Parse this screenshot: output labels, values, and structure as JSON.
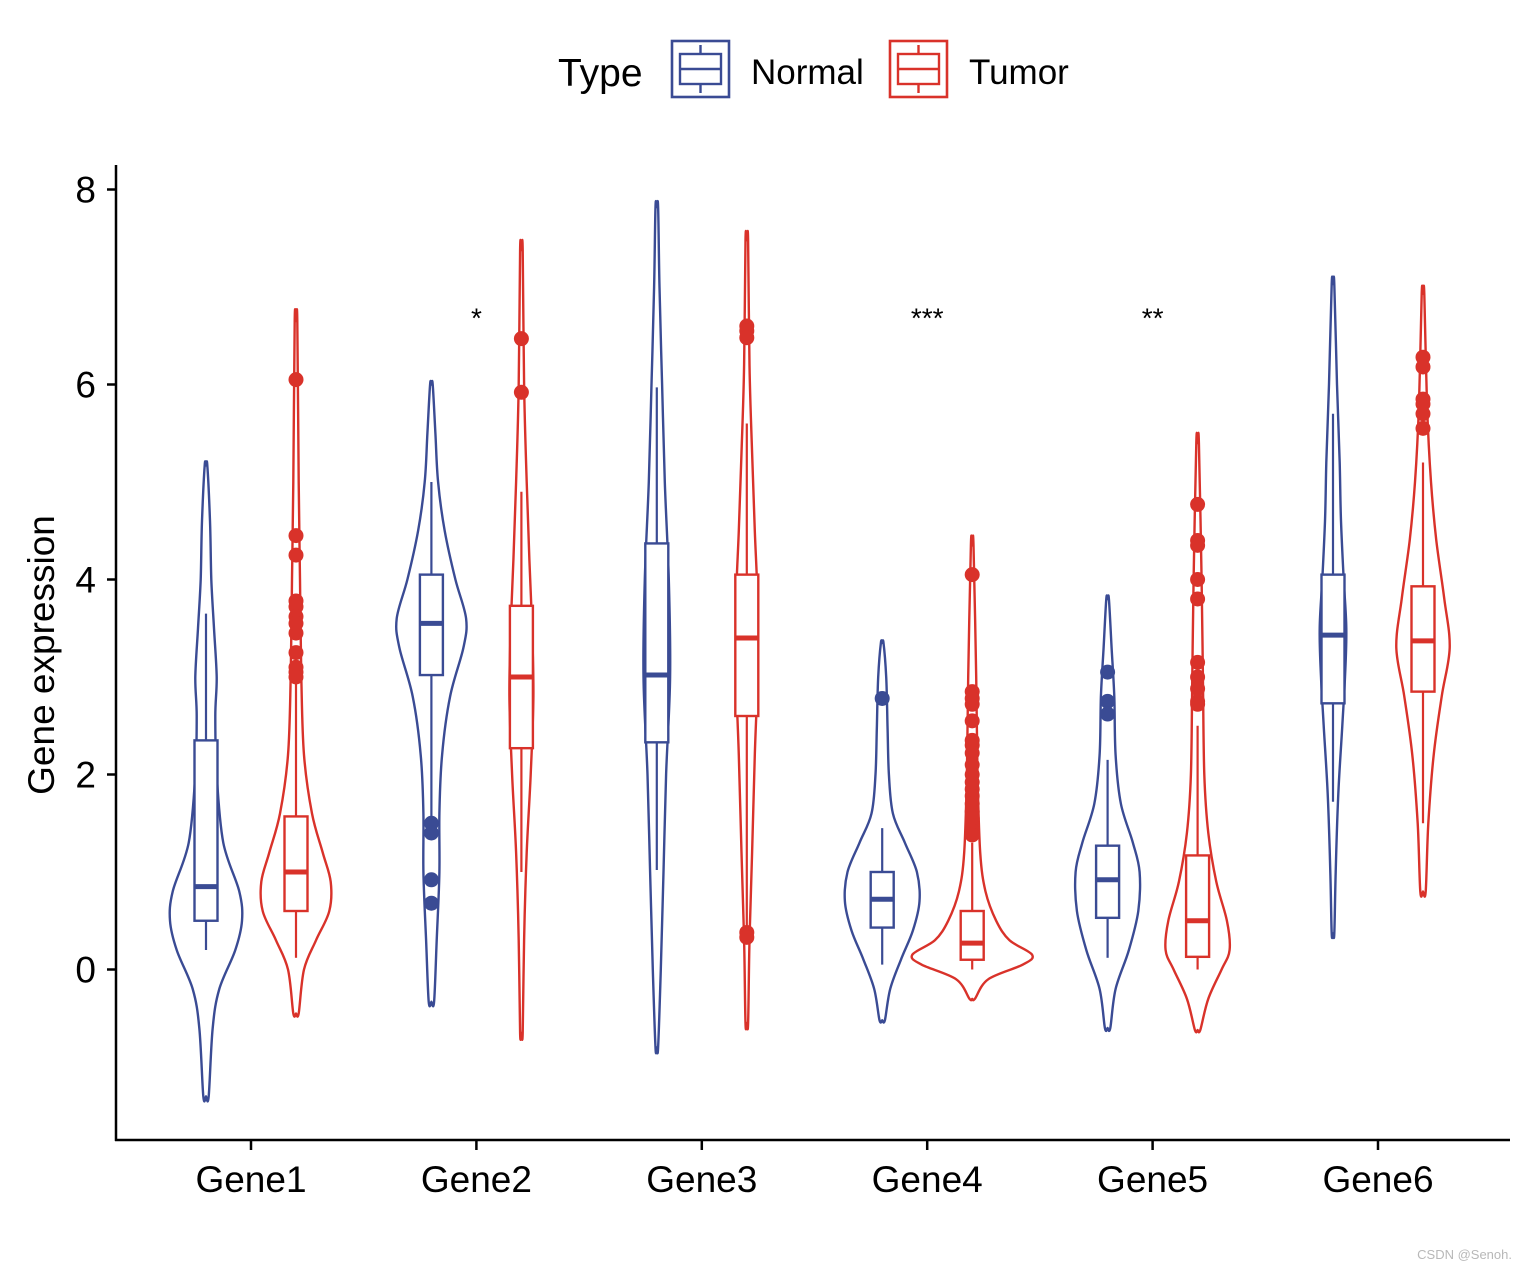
{
  "watermark": "CSDN @Senoh.",
  "chart_data": {
    "type": "violin",
    "title": "",
    "xlabel": "",
    "ylabel": "Gene expression",
    "ylim": [
      -1.75,
      8.3
    ],
    "yticks": [
      0,
      2,
      4,
      6,
      8
    ],
    "legend": {
      "title": "Type",
      "placement": "top-center",
      "entries": [
        {
          "name": "Normal",
          "color": "#3a4b94"
        },
        {
          "name": "Tumor",
          "color": "#d9322a"
        }
      ]
    },
    "categories": [
      "Gene1",
      "Gene2",
      "Gene3",
      "Gene4",
      "Gene5",
      "Gene6"
    ],
    "significance": [
      "",
      "*",
      "",
      "***",
      "**",
      ""
    ],
    "significance_y": 6.75,
    "series": [
      {
        "name": "Normal",
        "color": "#3a4b94",
        "groups": [
          {
            "violin_min": -1.3,
            "violin_max": 5.17,
            "whisker_low": 0.2,
            "q1": 0.5,
            "median": 0.85,
            "q3": 2.35,
            "whisker_high": 3.65,
            "outliers": [],
            "density": [
              [
                -1.3,
                0.02
              ],
              [
                -0.6,
                0.05
              ],
              [
                -0.2,
                0.1
              ],
              [
                0.2,
                0.22
              ],
              [
                0.5,
                0.27
              ],
              [
                0.8,
                0.25
              ],
              [
                1.3,
                0.13
              ],
              [
                2.0,
                0.08
              ],
              [
                2.6,
                0.07
              ],
              [
                3.0,
                0.08
              ],
              [
                3.5,
                0.06
              ],
              [
                4.0,
                0.04
              ],
              [
                4.6,
                0.03
              ],
              [
                5.17,
                0.01
              ]
            ]
          },
          {
            "violin_min": -0.33,
            "violin_max": 6.0,
            "whisker_low": 1.55,
            "q1": 3.02,
            "median": 3.55,
            "q3": 4.05,
            "whisker_high": 5.0,
            "outliers": [
              1.5,
              1.4,
              0.92,
              0.68
            ],
            "density": [
              [
                -0.33,
                0.02
              ],
              [
                0.3,
                0.04
              ],
              [
                1.0,
                0.06
              ],
              [
                1.6,
                0.06
              ],
              [
                2.2,
                0.08
              ],
              [
                2.8,
                0.14
              ],
              [
                3.3,
                0.24
              ],
              [
                3.6,
                0.26
              ],
              [
                4.0,
                0.18
              ],
              [
                4.5,
                0.1
              ],
              [
                5.0,
                0.05
              ],
              [
                5.5,
                0.03
              ],
              [
                6.0,
                0.01
              ]
            ]
          },
          {
            "violin_min": -0.8,
            "violin_max": 7.82,
            "whisker_low": 1.02,
            "q1": 2.33,
            "median": 3.02,
            "q3": 4.37,
            "whisker_high": 5.97,
            "outliers": [],
            "density": [
              [
                -0.8,
                0.01
              ],
              [
                0.0,
                0.03
              ],
              [
                1.0,
                0.05
              ],
              [
                2.0,
                0.07
              ],
              [
                3.0,
                0.1
              ],
              [
                4.0,
                0.09
              ],
              [
                5.0,
                0.06
              ],
              [
                6.0,
                0.04
              ],
              [
                7.0,
                0.02
              ],
              [
                7.82,
                0.01
              ]
            ]
          },
          {
            "violin_min": -0.52,
            "violin_max": 3.35,
            "whisker_low": 0.05,
            "q1": 0.43,
            "median": 0.72,
            "q3": 1.0,
            "whisker_high": 1.45,
            "outliers": [
              2.78
            ],
            "density": [
              [
                -0.52,
                0.02
              ],
              [
                -0.2,
                0.06
              ],
              [
                0.1,
                0.14
              ],
              [
                0.4,
                0.23
              ],
              [
                0.7,
                0.28
              ],
              [
                1.0,
                0.26
              ],
              [
                1.3,
                0.17
              ],
              [
                1.6,
                0.08
              ],
              [
                2.0,
                0.05
              ],
              [
                2.5,
                0.04
              ],
              [
                3.0,
                0.03
              ],
              [
                3.35,
                0.01
              ]
            ]
          },
          {
            "violin_min": -0.6,
            "violin_max": 3.8,
            "whisker_low": 0.12,
            "q1": 0.53,
            "median": 0.92,
            "q3": 1.27,
            "whisker_high": 2.15,
            "outliers": [
              3.05,
              2.75,
              2.62
            ],
            "density": [
              [
                -0.6,
                0.02
              ],
              [
                -0.2,
                0.06
              ],
              [
                0.2,
                0.16
              ],
              [
                0.6,
                0.23
              ],
              [
                1.0,
                0.24
              ],
              [
                1.3,
                0.19
              ],
              [
                1.7,
                0.1
              ],
              [
                2.2,
                0.06
              ],
              [
                2.8,
                0.05
              ],
              [
                3.3,
                0.03
              ],
              [
                3.8,
                0.01
              ]
            ]
          },
          {
            "violin_min": 0.37,
            "violin_max": 7.03,
            "whisker_low": 1.72,
            "q1": 2.73,
            "median": 3.43,
            "q3": 4.05,
            "whisker_high": 5.7,
            "outliers": [],
            "density": [
              [
                0.37,
                0.01
              ],
              [
                1.0,
                0.02
              ],
              [
                1.8,
                0.04
              ],
              [
                2.5,
                0.07
              ],
              [
                3.0,
                0.09
              ],
              [
                3.5,
                0.1
              ],
              [
                4.0,
                0.08
              ],
              [
                4.6,
                0.06
              ],
              [
                5.2,
                0.05
              ],
              [
                6.0,
                0.03
              ],
              [
                7.03,
                0.01
              ]
            ]
          }
        ]
      },
      {
        "name": "Tumor",
        "color": "#d9322a",
        "groups": [
          {
            "violin_min": -0.45,
            "violin_max": 6.65,
            "whisker_low": 0.12,
            "q1": 0.6,
            "median": 1.0,
            "q3": 1.57,
            "whisker_high": 2.95,
            "outliers": [
              6.05,
              4.45,
              4.25,
              3.78,
              3.72,
              3.62,
              3.55,
              3.45,
              3.25,
              3.1,
              3.05,
              3.0
            ],
            "density": [
              [
                -0.45,
                0.02
              ],
              [
                0.0,
                0.06
              ],
              [
                0.3,
                0.15
              ],
              [
                0.6,
                0.25
              ],
              [
                0.9,
                0.26
              ],
              [
                1.2,
                0.2
              ],
              [
                1.6,
                0.12
              ],
              [
                2.2,
                0.06
              ],
              [
                3.0,
                0.04
              ],
              [
                4.0,
                0.03
              ],
              [
                5.0,
                0.02
              ],
              [
                6.65,
                0.01
              ]
            ]
          },
          {
            "violin_min": -0.65,
            "violin_max": 7.38,
            "whisker_low": 1.0,
            "q1": 2.27,
            "median": 3.0,
            "q3": 3.73,
            "whisker_high": 4.9,
            "outliers": [
              6.47,
              5.92
            ],
            "density": [
              [
                -0.65,
                0.01
              ],
              [
                0.3,
                0.02
              ],
              [
                1.2,
                0.04
              ],
              [
                2.0,
                0.07
              ],
              [
                2.8,
                0.09
              ],
              [
                3.5,
                0.08
              ],
              [
                4.2,
                0.06
              ],
              [
                5.0,
                0.04
              ],
              [
                6.0,
                0.02
              ],
              [
                7.38,
                0.01
              ]
            ]
          },
          {
            "violin_min": -0.55,
            "violin_max": 7.48,
            "whisker_low": 0.45,
            "q1": 2.6,
            "median": 3.4,
            "q3": 4.05,
            "whisker_high": 5.6,
            "outliers": [
              6.6,
              6.55,
              6.48,
              0.38,
              0.33
            ],
            "density": [
              [
                -0.55,
                0.01
              ],
              [
                0.3,
                0.02
              ],
              [
                1.2,
                0.04
              ],
              [
                2.2,
                0.06
              ],
              [
                3.0,
                0.08
              ],
              [
                3.8,
                0.08
              ],
              [
                4.5,
                0.06
              ],
              [
                5.3,
                0.04
              ],
              [
                6.2,
                0.02
              ],
              [
                7.48,
                0.01
              ]
            ]
          },
          {
            "violin_min": -0.3,
            "violin_max": 4.35,
            "whisker_low": 0.0,
            "q1": 0.1,
            "median": 0.27,
            "q3": 0.6,
            "whisker_high": 1.3,
            "outliers": [
              4.05,
              2.85,
              2.78,
              2.72,
              2.55,
              2.35,
              2.3,
              2.22,
              2.1,
              2.0,
              1.92,
              1.85,
              1.78,
              1.7,
              1.62,
              1.55,
              1.48,
              1.42,
              1.38
            ],
            "density": [
              [
                -0.3,
                0.02
              ],
              [
                -0.1,
                0.12
              ],
              [
                0.05,
                0.38
              ],
              [
                0.15,
                0.45
              ],
              [
                0.3,
                0.28
              ],
              [
                0.5,
                0.18
              ],
              [
                0.8,
                0.1
              ],
              [
                1.2,
                0.06
              ],
              [
                2.0,
                0.04
              ],
              [
                3.0,
                0.03
              ],
              [
                4.35,
                0.01
              ]
            ]
          },
          {
            "violin_min": -0.62,
            "violin_max": 5.4,
            "whisker_low": 0.0,
            "q1": 0.13,
            "median": 0.5,
            "q3": 1.17,
            "whisker_high": 2.5,
            "outliers": [
              4.77,
              4.4,
              4.35,
              4.0,
              3.8,
              3.15,
              3.0,
              2.88,
              2.75,
              2.72
            ],
            "density": [
              [
                -0.62,
                0.02
              ],
              [
                -0.3,
                0.08
              ],
              [
                0.0,
                0.18
              ],
              [
                0.2,
                0.24
              ],
              [
                0.5,
                0.22
              ],
              [
                0.9,
                0.14
              ],
              [
                1.4,
                0.08
              ],
              [
                2.0,
                0.05
              ],
              [
                3.0,
                0.04
              ],
              [
                4.0,
                0.03
              ],
              [
                5.4,
                0.01
              ]
            ]
          },
          {
            "violin_min": 0.8,
            "violin_max": 6.93,
            "whisker_low": 1.5,
            "q1": 2.85,
            "median": 3.37,
            "q3": 3.93,
            "whisker_high": 5.2,
            "outliers": [
              6.28,
              6.18,
              5.85,
              5.8,
              5.7,
              5.55
            ],
            "density": [
              [
                0.8,
                0.02
              ],
              [
                1.5,
                0.04
              ],
              [
                2.2,
                0.08
              ],
              [
                2.8,
                0.14
              ],
              [
                3.3,
                0.2
              ],
              [
                3.8,
                0.16
              ],
              [
                4.4,
                0.1
              ],
              [
                5.0,
                0.06
              ],
              [
                5.8,
                0.03
              ],
              [
                6.93,
                0.01
              ]
            ]
          }
        ]
      }
    ]
  }
}
